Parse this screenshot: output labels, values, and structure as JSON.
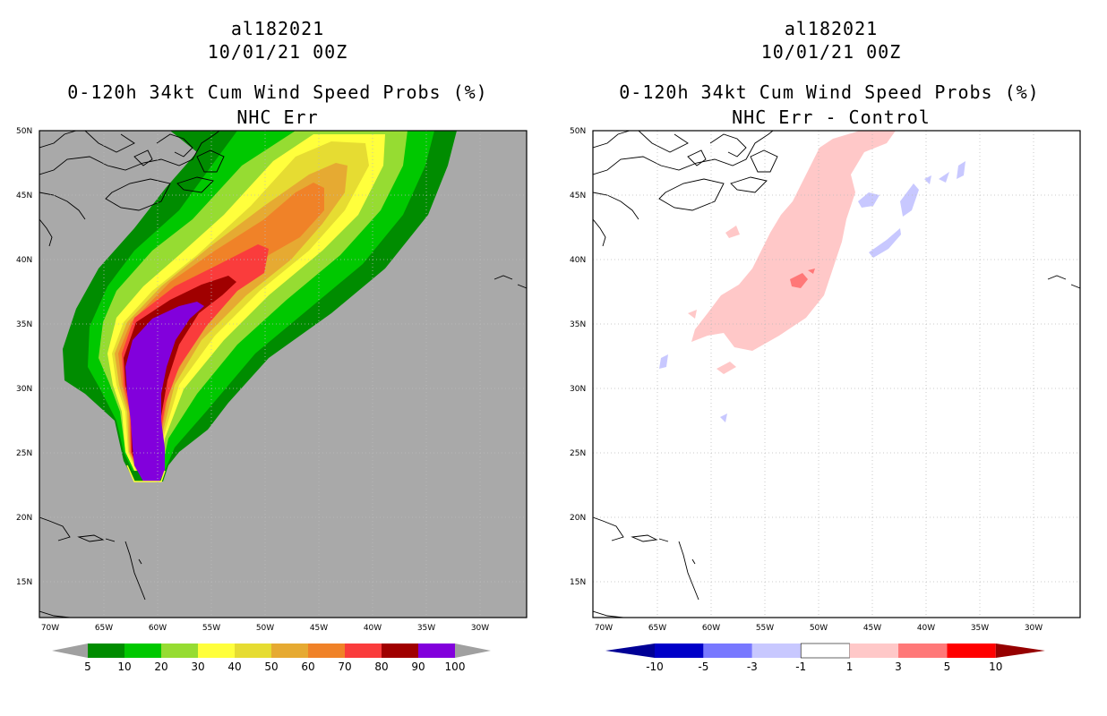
{
  "left_panel": {
    "title_line1": "al182021",
    "title_line2": "10/01/21 00Z",
    "title_line3": "0-120h 34kt Cum Wind Speed Probs (%)",
    "title_line4": "NHC Err"
  },
  "right_panel": {
    "title_line1": "al182021",
    "title_line2": "10/01/21 00Z",
    "title_line3": "0-120h 34kt Cum Wind Speed Probs (%)",
    "title_line4": "NHC Err - Control"
  },
  "axes": {
    "lat_labels": [
      "50N",
      "45N",
      "40N",
      "35N",
      "30N",
      "25N",
      "20N",
      "15N"
    ],
    "lon_labels": [
      "70W",
      "65W",
      "60W",
      "55W",
      "50W",
      "45W",
      "40W",
      "35W",
      "30W"
    ]
  },
  "left_colorbar": {
    "labels": [
      "5",
      "10",
      "20",
      "30",
      "40",
      "50",
      "60",
      "70",
      "80",
      "90",
      "100"
    ],
    "colors": [
      "#008c00",
      "#00c800",
      "#96dc32",
      "#ffff3c",
      "#e6dc32",
      "#e6aa32",
      "#f08228",
      "#fa3c3c",
      "#a00000",
      "#8200dc"
    ],
    "end_color": "#a0a0a0"
  },
  "right_colorbar": {
    "labels": [
      "-10",
      "-5",
      "-3",
      "-1",
      "1",
      "3",
      "5",
      "10"
    ],
    "colors": [
      "#0000c8",
      "#7878ff",
      "#c8c8ff",
      "#ffffff",
      "#ffc8c8",
      "#ff7878",
      "#ff0000"
    ],
    "low_color": "#000096",
    "high_color": "#960000"
  },
  "colors": {
    "ocean_left": "#a9a9a9",
    "grid": "#bbbbbb",
    "coast": "#000000"
  }
}
